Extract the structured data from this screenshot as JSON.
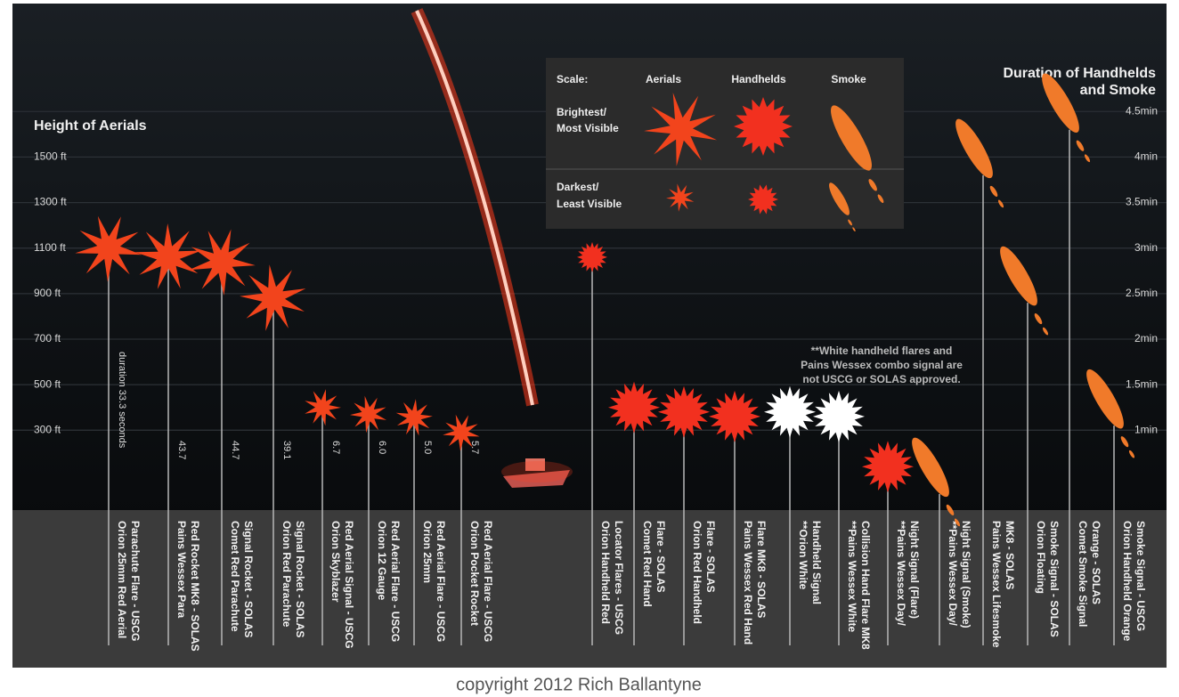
{
  "chart_data": {
    "type": "flare",
    "y_label": "Height of Aerials",
    "y2_label": [
      "Duration of Handhelds",
      "and Smoke"
    ],
    "scale_title": "Scale:",
    "scale_rows": [
      [
        "Brightest/",
        "Most Visible"
      ],
      [
        "Darkest/",
        "Least Visible"
      ]
    ],
    "note": [
      "**White handheld flares and",
      "Pains Wessex combo signal are",
      "not USCG or SOLAS approved."
    ],
    "credit": "copyright 2012 Rich Ballantyne",
    "categories": [
      [
        "Orion 25mm Red Aerial",
        "Parachute Flare - USCG"
      ],
      [
        "Pains Wessex Para",
        "Red Rocket MK8 - SOLAS"
      ],
      [
        "Comet Red Parachute",
        "Signal Rocket - SOLAS"
      ],
      [
        "Orion Red Parachute",
        "Signal Rocket - SOLAS"
      ],
      [
        "Orion Skyblazer",
        "Red Aerial Signal - USCG"
      ],
      [
        "Orion 12 Gauge",
        "Red Aerial Flare - USCG"
      ],
      [
        "Orion 25mm",
        "Red Aerial Flare - USCG"
      ],
      [
        "Orion Pocket Rocket",
        "Red Aerial Flare - USCG"
      ],
      [
        "Orion Handheld Red",
        "Locator Flares - USCG"
      ],
      [
        "Comet Red Hand",
        "Flare - SOLAS"
      ],
      [
        "Orion Red Handheld",
        "Flare - SOLAS"
      ],
      [
        "Pains Wessex Red Hand",
        "Flare MK8 - SOLAS"
      ],
      [
        "**Orion White",
        "Handheld Signal"
      ],
      [
        "**Pains Wessex White",
        "Collision Hand Flare MK8"
      ],
      [
        "**Pains Wessex Day/",
        "Night Signal (Flare)"
      ],
      [
        "**Pains Wessex Day/",
        "Night Signal (Smoke)"
      ],
      [
        "Pains Wessex Lifesmoke",
        "MK8 - SOLAS"
      ],
      [
        "Orion Floating",
        "Smoke Signal - SOLAS"
      ],
      [
        "Comet Smoke Signal",
        "Orange - SOLAS"
      ],
      [
        "Orion Handheld Orange",
        "Smoke Signal - USCG"
      ]
    ],
    "duration_labels": [
      "duration 33.3 seconds",
      "43.7",
      "44.7",
      "39.1",
      "6.7",
      "6.0",
      "5.0",
      "5.7"
    ],
    "series": [
      {
        "name": "Aerials",
        "color": "#f2441c",
        "axis": "y",
        "values": [
          1100,
          1060,
          1040,
          880,
          400,
          370,
          355,
          290,
          null,
          null,
          null,
          null,
          null,
          null,
          null,
          null,
          null,
          null,
          null,
          null
        ]
      },
      {
        "name": "Handhelds",
        "color": "#f2301f",
        "axis": "y2",
        "values": [
          null,
          null,
          null,
          null,
          null,
          null,
          null,
          null,
          2.9,
          1.25,
          1.2,
          1.15,
          1.2,
          1.15,
          0.6,
          null,
          null,
          null,
          null,
          null
        ],
        "point_colors": [
          null,
          null,
          null,
          null,
          null,
          null,
          null,
          null,
          "#f2301f",
          "#f2301f",
          "#f2301f",
          "#f2301f",
          "#ffffff",
          "#ffffff",
          "#f2301f",
          null,
          null,
          null,
          null,
          null
        ]
      },
      {
        "name": "Smoke",
        "color": "#f07a2a",
        "axis": "y2",
        "values": [
          null,
          null,
          null,
          null,
          null,
          null,
          null,
          null,
          null,
          null,
          null,
          null,
          null,
          null,
          null,
          0.3,
          3.8,
          2.4,
          4.3,
          1.05
        ]
      }
    ],
    "ylim": [
      0,
      2100
    ],
    "yticks": [
      {
        "value": 300,
        "label": "300 ft"
      },
      {
        "value": 500,
        "label": "500 ft"
      },
      {
        "value": 700,
        "label": "700 ft"
      },
      {
        "value": 900,
        "label": "900 ft"
      },
      {
        "value": 1100,
        "label": "1100 ft"
      },
      {
        "value": 1300,
        "label": "1300 ft"
      },
      {
        "value": 1500,
        "label": "1500 ft"
      }
    ],
    "y2lim": [
      0.25,
      5.5
    ],
    "y2ticks": [
      {
        "value": 1,
        "label": "1min"
      },
      {
        "value": 1.5,
        "label": "1.5min"
      },
      {
        "value": 2,
        "label": "2min"
      },
      {
        "value": 2.5,
        "label": "2.5min"
      },
      {
        "value": 3,
        "label": "3min"
      },
      {
        "value": 3.5,
        "label": "3.5min"
      },
      {
        "value": 4,
        "label": "4min"
      },
      {
        "value": 4.5,
        "label": "4.5min"
      }
    ],
    "grid": true
  }
}
